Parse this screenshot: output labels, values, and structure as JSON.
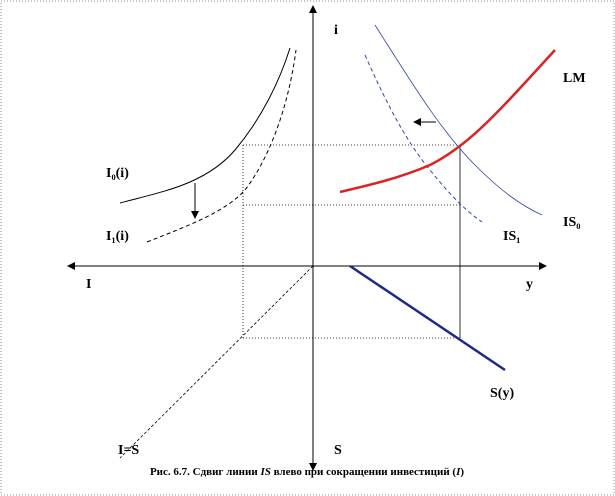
{
  "labels": {
    "i_axis": "i",
    "lm": "LM",
    "i0": "I₀(i)",
    "i1": "I₁(i)",
    "is1": "IS₁",
    "is0": "IS₀",
    "invest_axis": "I",
    "y_axis": "y",
    "s_curve": "S(y)",
    "equality": "I=S",
    "s_axis": "S"
  },
  "caption": {
    "prefix": "Рис. 6.7. Сдвиг линии ",
    "italic1": "IS",
    "middle": " влево при сокращении инвестиций (",
    "italic2": "I",
    "suffix": ")"
  }
}
